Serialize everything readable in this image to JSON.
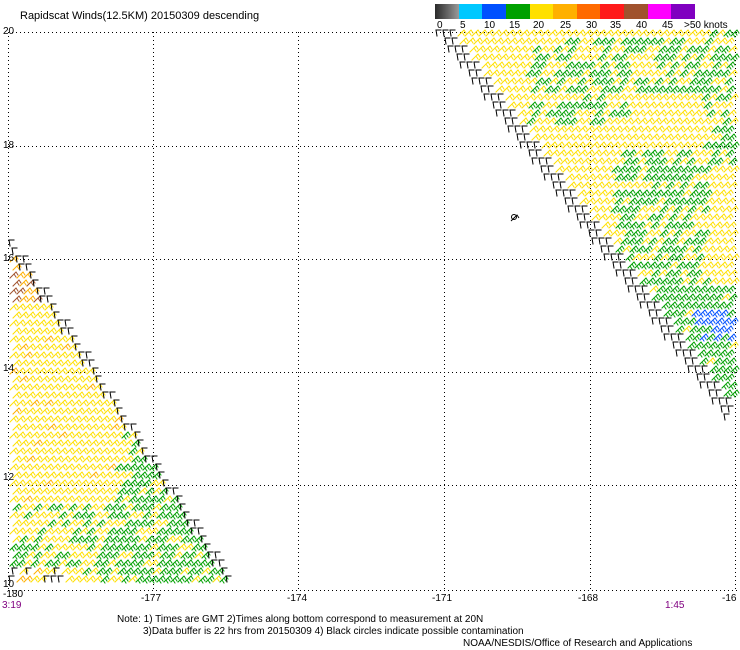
{
  "title": "Rapidscat Winds(12.5KM) 20150309 descending",
  "colorbar": {
    "labels": [
      "0",
      "5",
      "10",
      "15",
      "20",
      "25",
      "30",
      "35",
      "40",
      "45",
      ">50 knots"
    ],
    "colors": [
      "#4a4a4a",
      "#00c8ff",
      "#0050ff",
      "#00a000",
      "#ffe000",
      "#ffb000",
      "#ff6a00",
      "#ff1a1a",
      "#a0522d",
      "#ff00ff",
      "#8000c0"
    ]
  },
  "lat_labels": [
    "20",
    "18",
    "16",
    "14",
    "12",
    "10"
  ],
  "lon_labels": [
    "-180",
    "-177",
    "-174",
    "-171",
    "-168",
    "-16"
  ],
  "time_left": "3:19",
  "time_right": "1:45",
  "notes": [
    "Note: 1) Times are GMT 2)Times along bottom correspond to measurement at 20N",
    "3)Data buffer is 22 hrs from 20150309 4) Black circles indicate possible contamination",
    "NOAA/NESDIS/Office of Research and Applications"
  ]
}
